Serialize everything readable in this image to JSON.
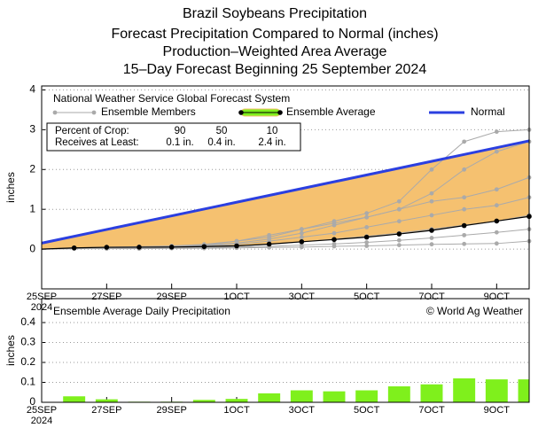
{
  "chart_data": [
    {
      "type": "line",
      "title": [
        "Brazil Soybeans Precipitation",
        "Forecast Precipitation Compared to Normal (inches)",
        "Production–Weighted Area Average",
        "15–Day Forecast Beginning 25 September 2024"
      ],
      "y_label": "inches",
      "legend_title": "National Weather Service Global Forecast System",
      "xlim": [
        0,
        15
      ],
      "ylim": [
        -1,
        4.1
      ],
      "yticks": [
        0,
        1,
        2,
        3,
        4
      ],
      "grid": true,
      "xticks": [
        {
          "value": 0,
          "label": "25SEP"
        },
        {
          "value": 2,
          "label": "27SEP"
        },
        {
          "value": 4,
          "label": "29SEP"
        },
        {
          "value": 6,
          "label": "1OCT"
        },
        {
          "value": 8,
          "label": "3OCT"
        },
        {
          "value": 10,
          "label": "5OCT"
        },
        {
          "value": 12,
          "label": "7OCT"
        },
        {
          "value": 14,
          "label": "9OCT"
        }
      ],
      "x_year": "2024",
      "area_color": "#f5c170",
      "ensemble": {
        "name": "Ensemble Members",
        "color": "#aaaaaa",
        "x": [
          0,
          1,
          2,
          3,
          4,
          5,
          6,
          7,
          8,
          9,
          10,
          11,
          12,
          13,
          14,
          15
        ],
        "members": [
          [
            0,
            0.02,
            0.03,
            0.04,
            0.05,
            0.1,
            0.2,
            0.3,
            0.5,
            0.7,
            0.9,
            1.2,
            2.0,
            2.7,
            2.95,
            3.0
          ],
          [
            0,
            0.03,
            0.05,
            0.06,
            0.08,
            0.12,
            0.2,
            0.35,
            0.5,
            0.65,
            0.8,
            1.0,
            1.4,
            2.0,
            2.45,
            2.7
          ],
          [
            0,
            0.03,
            0.04,
            0.05,
            0.07,
            0.1,
            0.15,
            0.25,
            0.4,
            0.6,
            0.8,
            1.0,
            1.2,
            1.3,
            1.5,
            1.8
          ],
          [
            0,
            0.02,
            0.04,
            0.05,
            0.06,
            0.08,
            0.12,
            0.2,
            0.3,
            0.4,
            0.55,
            0.7,
            0.85,
            1.0,
            1.1,
            1.3
          ],
          [
            0,
            0.03,
            0.04,
            0.04,
            0.05,
            0.06,
            0.08,
            0.12,
            0.18,
            0.25,
            0.32,
            0.4,
            0.5,
            0.6,
            0.7,
            0.85
          ],
          [
            0,
            0.01,
            0.02,
            0.02,
            0.03,
            0.04,
            0.05,
            0.07,
            0.1,
            0.13,
            0.17,
            0.22,
            0.28,
            0.35,
            0.42,
            0.5
          ],
          [
            0,
            0.01,
            0.01,
            0.01,
            0.02,
            0.02,
            0.03,
            0.04,
            0.05,
            0.07,
            0.08,
            0.1,
            0.12,
            0.13,
            0.14,
            0.2
          ]
        ]
      },
      "series": [
        {
          "name": "Normal",
          "color": "#2b3fe0",
          "x": [
            0,
            15
          ],
          "values": [
            0.15,
            2.72
          ]
        },
        {
          "name": "Ensemble Average",
          "color": "#000000",
          "band_color": "#7ff01c",
          "x": [
            0,
            1,
            2,
            3,
            4,
            5,
            6,
            7,
            8,
            9,
            10,
            11,
            12,
            13,
            14,
            15
          ],
          "values": [
            0,
            0.03,
            0.045,
            0.048,
            0.051,
            0.063,
            0.08,
            0.125,
            0.185,
            0.24,
            0.3,
            0.38,
            0.47,
            0.59,
            0.705,
            0.82
          ]
        }
      ],
      "crop_table": {
        "rows": [
          [
            "Percent of Crop:",
            "90",
            "50",
            "10"
          ],
          [
            "Receives at Least:",
            "0.1 in.",
            "0.4 in.",
            "2.4 in."
          ]
        ]
      }
    },
    {
      "type": "bar",
      "title": "Ensemble Average Daily Precipitation",
      "credit": "© World Ag Weather",
      "y_label": "inches",
      "color": "#7ff01c",
      "xlim": [
        0,
        15
      ],
      "ylim": [
        0,
        0.52
      ],
      "yticks": [
        0,
        0.1,
        0.2,
        0.3,
        0.4
      ],
      "grid": true,
      "xticks": [
        {
          "value": 0,
          "label": "25SEP"
        },
        {
          "value": 2,
          "label": "27SEP"
        },
        {
          "value": 4,
          "label": "29SEP"
        },
        {
          "value": 6,
          "label": "1OCT"
        },
        {
          "value": 8,
          "label": "3OCT"
        },
        {
          "value": 10,
          "label": "5OCT"
        },
        {
          "value": 12,
          "label": "7OCT"
        },
        {
          "value": 14,
          "label": "9OCT"
        }
      ],
      "x_year": "2024",
      "x": [
        1,
        2,
        3,
        4,
        5,
        6,
        7,
        8,
        9,
        10,
        11,
        12,
        13,
        14,
        15
      ],
      "values": [
        0.03,
        0.015,
        0.003,
        0.003,
        0.012,
        0.017,
        0.045,
        0.06,
        0.055,
        0.06,
        0.08,
        0.09,
        0.12,
        0.115,
        0.115
      ]
    }
  ]
}
